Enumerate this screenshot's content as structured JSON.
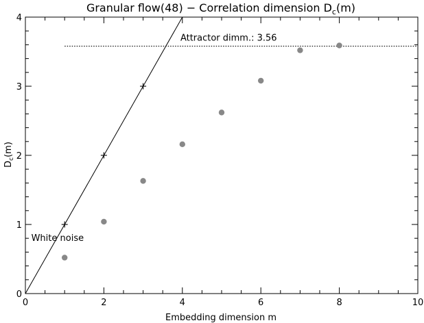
{
  "chart_data": {
    "type": "scatter",
    "title": "Granular flow(48) − Correlation dimension D",
    "title_subscript": "c",
    "title_suffix": "(m)",
    "xlabel": "Embedding dimension m",
    "ylabel": "D",
    "ylabel_subscript": "c",
    "ylabel_suffix": "(m)",
    "xlim": [
      0,
      10
    ],
    "ylim": [
      0,
      4
    ],
    "x_ticks": [
      0,
      2,
      4,
      6,
      8,
      10
    ],
    "y_ticks": [
      0,
      1,
      2,
      3,
      4
    ],
    "x_tick_labels": [
      "0",
      "2",
      "4",
      "6",
      "8",
      "10"
    ],
    "y_tick_labels": [
      "0",
      "1",
      "2",
      "3",
      "4"
    ],
    "grid": false,
    "series": [
      {
        "marker": "circle",
        "color": "#888888",
        "x": [
          1,
          2,
          3,
          4,
          5,
          6,
          7,
          8
        ],
        "y": [
          0.52,
          1.04,
          1.63,
          2.16,
          2.62,
          3.08,
          3.52,
          3.59
        ]
      },
      {
        "marker": "plus",
        "color": "#000000",
        "x": [
          1,
          2,
          3
        ],
        "y": [
          1,
          2,
          3
        ]
      }
    ],
    "reference_lines": [
      {
        "kind": "line",
        "slope": 1,
        "intercept": 0,
        "x_range": [
          0,
          4
        ],
        "color": "#000000"
      },
      {
        "kind": "hline",
        "y": 3.58,
        "x_range": [
          1,
          10
        ],
        "style": "dotted",
        "color": "#000000"
      }
    ],
    "annotations": [
      {
        "text": "Attractor dimm.: 3.56",
        "x": 3.95,
        "y": 3.66
      },
      {
        "text": "White noise",
        "x": 0.15,
        "y": 0.76
      }
    ]
  }
}
